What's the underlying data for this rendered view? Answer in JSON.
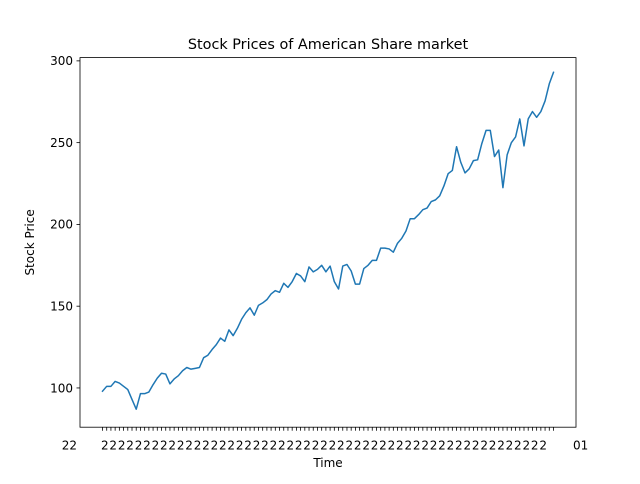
{
  "chart_data": {
    "type": "line",
    "title": "Stock Prices of American Share market",
    "xlabel": "Time",
    "ylabel": "Stock Price",
    "x_ticklabels_overlapping": true,
    "x_ticklabel_visible_start": "22",
    "x_ticklabel_visible_end": "01",
    "yticks": [
      100,
      150,
      200,
      250,
      300
    ],
    "ylim": [
      76,
      302
    ],
    "grid": false,
    "series": [
      {
        "color": "#1f77b4",
        "values": [
          98,
          101,
          101,
          104,
          103,
          101,
          99,
          93,
          87,
          96.5,
          96.5,
          97.5,
          102,
          106,
          109,
          108.5,
          102.5,
          105.5,
          107.5,
          110.5,
          112.5,
          111.5,
          112,
          112.5,
          118.5,
          120,
          123.5,
          126.5,
          130.5,
          128.5,
          135.5,
          132,
          136.5,
          142,
          146,
          149,
          144.5,
          150.5,
          152,
          154,
          157.5,
          159.5,
          158.5,
          164,
          161.5,
          165,
          170,
          168.5,
          165,
          174,
          171,
          172.5,
          175,
          171,
          174.5,
          165,
          160.5,
          174.5,
          175.5,
          171.5,
          163.5,
          163.5,
          173,
          175,
          178,
          178,
          185.5,
          185.5,
          185,
          183,
          188.5,
          191.5,
          196,
          203.5,
          203.5,
          206,
          209,
          210,
          214,
          215,
          217.5,
          223.5,
          231,
          233,
          247.5,
          238,
          231.5,
          234,
          239,
          239.5,
          249.5,
          257.5,
          257.5,
          241.5,
          245.5,
          222.5,
          242.5,
          250,
          253.5,
          264.5,
          248,
          264.5,
          269,
          265.5,
          269,
          275.5,
          286,
          293
        ]
      }
    ]
  }
}
